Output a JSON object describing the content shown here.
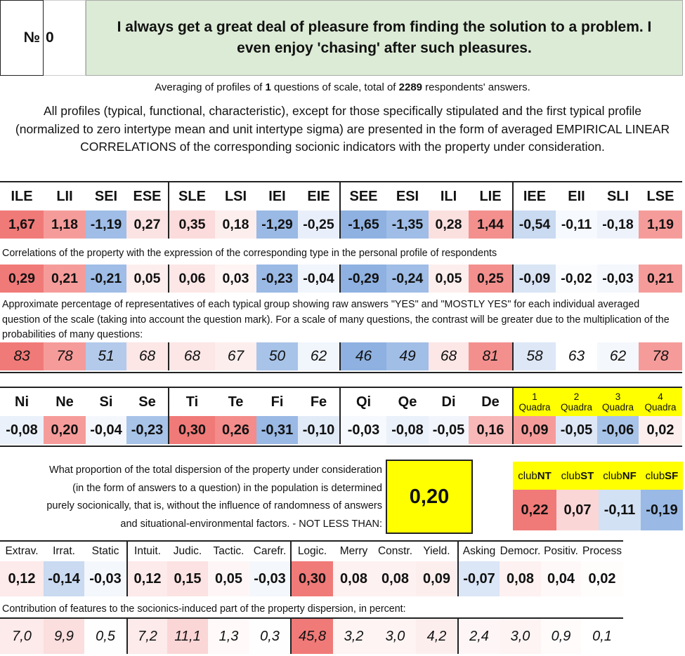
{
  "header": {
    "no_label": "№",
    "number": "0",
    "question": "I always get a great deal of pleasure from finding the solution to a problem. I even enjoy 'chasing' after such pleasures."
  },
  "averaging": {
    "prefix": "Averaging of profiles of ",
    "count": "1",
    "middle": " questions of scale, total of ",
    "respondents": "2289",
    "suffix": " respondents' answers."
  },
  "description": "All profiles (typical, functional, characteristic), except for those specifically stipulated and the first typical profile (normalized to zero intertype mean and unit intertype sigma) are presented in the form of averaged EMPIRICAL LINEAR CORRELATIONS of the corresponding socionic indicators with the property under consideration.",
  "types": [
    "ILE",
    "LII",
    "SEI",
    "ESE",
    "SLE",
    "LSI",
    "IEI",
    "EIE",
    "SEE",
    "ESI",
    "ILI",
    "LIE",
    "IEE",
    "EII",
    "SLI",
    "LSE"
  ],
  "type_profile": [
    "1,67",
    "1,18",
    "-1,19",
    "0,27",
    "0,35",
    "0,18",
    "-1,29",
    "-0,25",
    "-1,65",
    "-1,35",
    "0,28",
    "1,44",
    "-0,54",
    "-0,11",
    "-0,18",
    "1,19"
  ],
  "type_profile_colors": [
    "#f07a78",
    "#f59c9a",
    "#9fbde6",
    "#fbe3e3",
    "#fbdbdb",
    "#fdeeee",
    "#9ab9e4",
    "#e9effa",
    "#8eb1e1",
    "#9fbde6",
    "#fbe0e0",
    "#f3908e",
    "#c9daf1",
    "#f6f9fd",
    "#eef3fb",
    "#f59c9a"
  ],
  "corr_note": "Correlations of the property with the expression of the corresponding type in the personal profile of respondents",
  "corr_values": [
    "0,29",
    "0,21",
    "-0,21",
    "0,05",
    "0,06",
    "0,03",
    "-0,23",
    "-0,04",
    "-0,29",
    "-0,24",
    "0,05",
    "0,25",
    "-0,09",
    "-0,02",
    "-0,03",
    "0,21"
  ],
  "corr_colors": [
    "#f07a78",
    "#f59c9a",
    "#9fbde6",
    "#fdeeee",
    "#fce6e6",
    "#fef4f4",
    "#9ab9e4",
    "#f1f5fc",
    "#8eb1e1",
    "#9fbde6",
    "#fdeeee",
    "#f3908e",
    "#d9e5f5",
    "#fbfcfe",
    "#f4f7fc",
    "#f59c9a"
  ],
  "pct_note": "Approximate percentage of representatives of each typical group showing raw answers \"YES\" and \"MOSTLY YES\" for each individual averaged question of the scale (taking into account the question mark). For a scale of many questions, the contrast will be greater due to the multiplication of the probabilities of many questions:",
  "pct_values": [
    "83",
    "78",
    "51",
    "68",
    "68",
    "67",
    "50",
    "62",
    "46",
    "49",
    "68",
    "81",
    "58",
    "63",
    "62",
    "78"
  ],
  "pct_colors": [
    "#f07a78",
    "#f59c9a",
    "#b3caeb",
    "#fce6e6",
    "#fce6e6",
    "#fdeeee",
    "#a8c3e8",
    "#f1f5fc",
    "#8eb1e1",
    "#a1bee6",
    "#fce6e6",
    "#f3908e",
    "#dde7f6",
    "#ffffff",
    "#f4f7fc",
    "#f59c9a"
  ],
  "functions": [
    "Ni",
    "Ne",
    "Si",
    "Se",
    "Ti",
    "Te",
    "Fi",
    "Fe",
    "Qi",
    "Qe",
    "Di",
    "De"
  ],
  "function_values": [
    "-0,08",
    "0,20",
    "-0,04",
    "-0,23",
    "0,30",
    "0,26",
    "-0,31",
    "-0,10",
    "-0,03",
    "-0,08",
    "-0,05",
    "0,16"
  ],
  "function_colors": [
    "#ebf1fa",
    "#f59c9a",
    "#f4f7fc",
    "#a8c3e8",
    "#f07a78",
    "#f38c8a",
    "#9ab9e4",
    "#e1eaf7",
    "#f6f9fd",
    "#ebf1fa",
    "#f2f6fc",
    "#f8b8b7"
  ],
  "quadras": [
    {
      "num": "1",
      "label": "Quadra",
      "value": "0,09",
      "color": "#f59c9a"
    },
    {
      "num": "2",
      "label": "Quadra",
      "value": "-0,05",
      "color": "#dde7f6"
    },
    {
      "num": "3",
      "label": "Quadra",
      "value": "-0,06",
      "color": "#a8c3e8"
    },
    {
      "num": "4",
      "label": "Quadra",
      "value": "0,02",
      "color": "#fdeeee"
    }
  ],
  "dispersion": {
    "text": "What proportion of the total dispersion of the property under consideration (in the form of answers to a question) in the population is determined purely socionically, that is, without the influence of randomness of answers and situational-environmental factors. - NOT LESS THAN:",
    "value": "0,20"
  },
  "clubs": [
    {
      "prefix": "club",
      "code": "NT",
      "value": "0,22",
      "color": "#f07a78"
    },
    {
      "prefix": "club",
      "code": "ST",
      "value": "0,07",
      "color": "#fbd6d6"
    },
    {
      "prefix": "club",
      "code": "NF",
      "value": "-0,11",
      "color": "#d3e1f4"
    },
    {
      "prefix": "club",
      "code": "SF",
      "value": "-0,19",
      "color": "#9ab9e4"
    }
  ],
  "features": [
    "Extrav.",
    "Irrat.",
    "Static",
    "Intuit.",
    "Judic.",
    "Tactic.",
    "Carefr.",
    "Logic.",
    "Merry",
    "Constr.",
    "Yield.",
    "Asking",
    "Democr.",
    "Positiv.",
    "Process"
  ],
  "feature_values": [
    "0,12",
    "-0,14",
    "-0,03",
    "0,12",
    "0,15",
    "0,05",
    "-0,03",
    "0,30",
    "0,08",
    "0,08",
    "0,09",
    "-0,07",
    "0,08",
    "0,04",
    "0,02"
  ],
  "feature_colors": [
    "#fdeaea",
    "#c9daf1",
    "#f4f7fc",
    "#fdeaea",
    "#fce2e2",
    "#fef6f6",
    "#f4f7fc",
    "#f07a78",
    "#fef1f1",
    "#fef1f1",
    "#fdeeee",
    "#dbe6f6",
    "#fef1f1",
    "#fff8f8",
    "#fffcfc"
  ],
  "contrib_note": "Contribution of features to the socionics-induced part of the property dispersion, in percent:",
  "contrib_values": [
    "7,0",
    "9,9",
    "0,5",
    "7,2",
    "11,1",
    "1,3",
    "0,3",
    "45,8",
    "3,2",
    "3,0",
    "4,2",
    "2,4",
    "3,0",
    "0,9",
    "0,1"
  ],
  "contrib_colors": [
    "#fdeaea",
    "#fbdede",
    "#fffefe",
    "#fdeaea",
    "#fbd6d6",
    "#fff9f9",
    "#fffefe",
    "#f07a78",
    "#fef4f4",
    "#fef4f4",
    "#fdeeee",
    "#fef6f6",
    "#fef4f4",
    "#fffbfb",
    "#ffffff"
  ]
}
